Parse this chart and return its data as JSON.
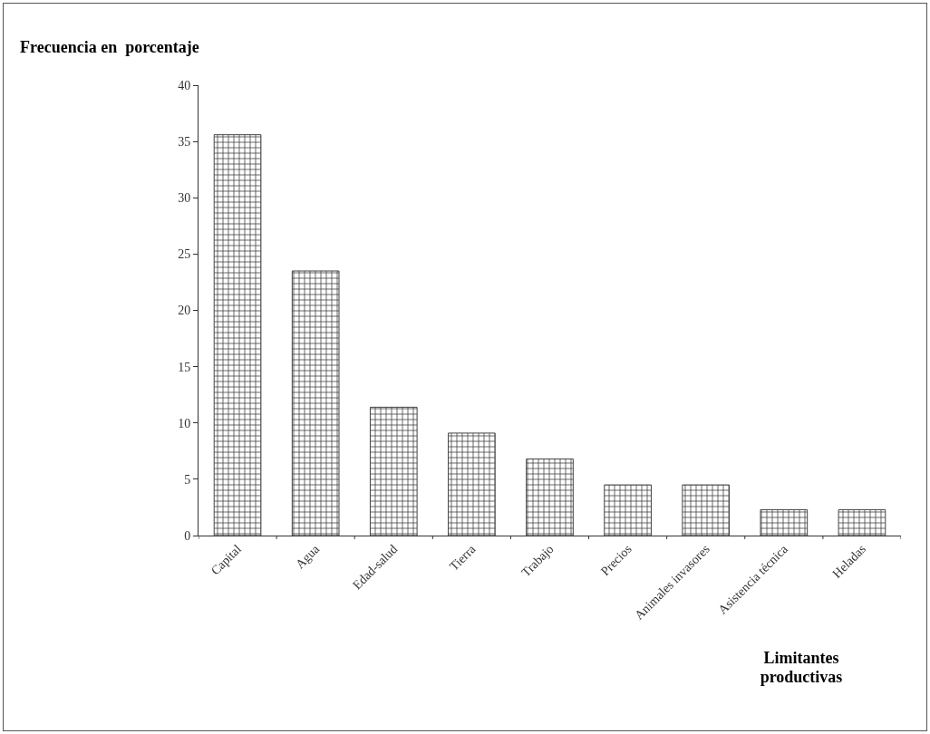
{
  "chart_data": {
    "type": "bar",
    "ylabel": "Frecuencia en  porcentaje",
    "xlabel": "Limitantes productivas",
    "categories": [
      "Capital",
      "Agua",
      "Edad-salud",
      "Tierra",
      "Trabajo",
      "Precios",
      "Animales invasores",
      "Asistencia técnica",
      "Heladas"
    ],
    "values": [
      35.6,
      23.5,
      11.4,
      9.1,
      6.8,
      4.5,
      4.5,
      2.3,
      2.3
    ],
    "color": "#444444",
    "ylim": [
      0,
      40
    ],
    "yticks": [
      0,
      5,
      10,
      15,
      20,
      25,
      30,
      35,
      40
    ],
    "grid": false,
    "legend": false
  }
}
